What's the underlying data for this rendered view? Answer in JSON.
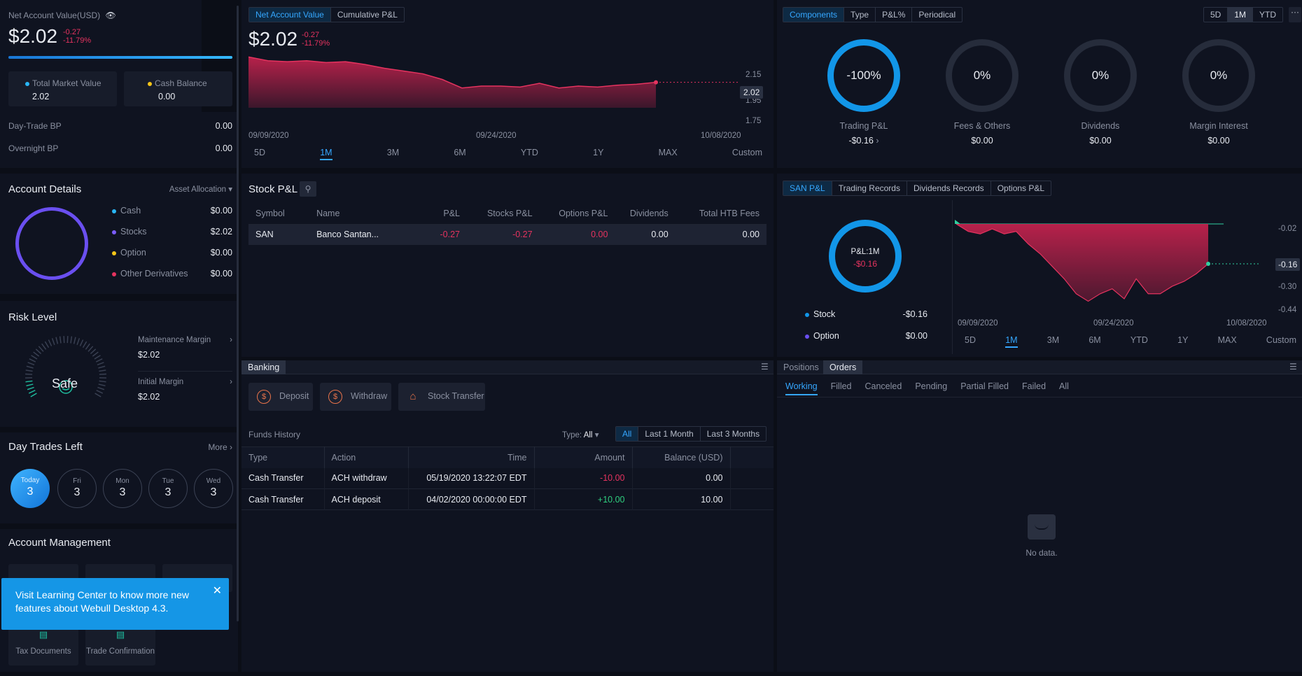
{
  "account": {
    "nav_label": "Net Account Value(USD)",
    "nav_value": "$2.02",
    "nav_change": "-0.27",
    "nav_change_pct": "-11.79%",
    "total_market_value_label": "Total Market Value",
    "total_market_value": "2.02",
    "cash_balance_label": "Cash Balance",
    "cash_balance": "0.00",
    "day_trade_bp_label": "Day-Trade BP",
    "day_trade_bp": "0.00",
    "overnight_bp_label": "Overnight BP",
    "overnight_bp": "0.00"
  },
  "account_details": {
    "title": "Account Details",
    "dropdown": "Asset Allocation",
    "items": [
      {
        "label": "Cash",
        "value": "$0.00",
        "color": "#29b6f6"
      },
      {
        "label": "Stocks",
        "value": "$2.02",
        "color": "#7b5cff"
      },
      {
        "label": "Option",
        "value": "$0.00",
        "color": "#f5c518"
      },
      {
        "label": "Other Derivatives",
        "value": "$0.00",
        "color": "#e5335f"
      }
    ]
  },
  "risk": {
    "title": "Risk Level",
    "status": "Safe",
    "maint_label": "Maintenance Margin",
    "maint_value": "$2.02",
    "init_label": "Initial Margin",
    "init_value": "$2.02"
  },
  "day_trades": {
    "title": "Day Trades Left",
    "more": "More",
    "days": [
      {
        "day": "Today",
        "count": "3"
      },
      {
        "day": "Fri",
        "count": "3"
      },
      {
        "day": "Mon",
        "count": "3"
      },
      {
        "day": "Tue",
        "count": "3"
      },
      {
        "day": "Wed",
        "count": "3"
      }
    ]
  },
  "account_mgmt": {
    "title": "Account Management",
    "tax_docs": "Tax Documents",
    "trade_conf": "Trade Confirmation"
  },
  "toast": {
    "text": "Visit Learning Center to know more new features about Webull Desktop 4.3."
  },
  "nav_chart": {
    "tabs": [
      "Net Account Value",
      "Cumulative P&L"
    ],
    "value": "$2.02",
    "change": "-0.27",
    "change_pct": "-11.79%",
    "last_label": "2.02",
    "y_ticks": [
      "2.15",
      "1.95",
      "1.75"
    ],
    "x_labels": [
      "09/09/2020",
      "09/24/2020",
      "10/08/2020"
    ],
    "ranges": [
      "5D",
      "1M",
      "3M",
      "6M",
      "YTD",
      "1Y",
      "MAX",
      "Custom"
    ],
    "active_range": "1M"
  },
  "chart_data": [
    {
      "type": "area",
      "title": "Net Account Value",
      "x": [
        "09/09/2020",
        "09/10/2020",
        "09/11/2020",
        "09/14/2020",
        "09/15/2020",
        "09/16/2020",
        "09/17/2020",
        "09/18/2020",
        "09/21/2020",
        "09/22/2020",
        "09/23/2020",
        "09/24/2020",
        "09/25/2020",
        "09/28/2020",
        "09/29/2020",
        "09/30/2020",
        "10/01/2020",
        "10/02/2020",
        "10/05/2020",
        "10/06/2020",
        "10/07/2020",
        "10/08/2020"
      ],
      "values": [
        2.29,
        2.25,
        2.24,
        2.25,
        2.23,
        2.24,
        2.21,
        2.17,
        2.14,
        2.11,
        2.05,
        1.96,
        1.98,
        1.98,
        1.97,
        2.01,
        1.96,
        1.98,
        1.97,
        1.99,
        2.0,
        2.02
      ],
      "ylim": [
        1.75,
        2.3
      ],
      "y_ticks": [
        2.15,
        1.95,
        1.75
      ]
    },
    {
      "type": "area",
      "title": "SAN P&L",
      "x": [
        "09/09/2020",
        "09/10/2020",
        "09/11/2020",
        "09/14/2020",
        "09/15/2020",
        "09/16/2020",
        "09/17/2020",
        "09/18/2020",
        "09/21/2020",
        "09/22/2020",
        "09/23/2020",
        "09/24/2020",
        "09/25/2020",
        "09/28/2020",
        "09/29/2020",
        "09/30/2020",
        "10/01/2020",
        "10/02/2020",
        "10/05/2020",
        "10/06/2020",
        "10/07/2020",
        "10/08/2020"
      ],
      "values": [
        0.0,
        -0.03,
        -0.04,
        -0.02,
        -0.04,
        -0.03,
        -0.08,
        -0.12,
        -0.17,
        -0.22,
        -0.28,
        -0.31,
        -0.28,
        -0.26,
        -0.3,
        -0.22,
        -0.28,
        -0.28,
        -0.25,
        -0.23,
        -0.2,
        -0.16
      ],
      "ylim": [
        -0.44,
        0.0
      ],
      "y_ticks": [
        -0.02,
        -0.16,
        -0.3,
        -0.44
      ]
    }
  ],
  "components": {
    "tabs": [
      "Components",
      "Type",
      "P&L%",
      "Periodical"
    ],
    "ranges": [
      "5D",
      "1M",
      "YTD"
    ],
    "active_range": "1M",
    "items": [
      {
        "pct": "-100%",
        "label": "Trading P&L",
        "value": "-$0.16"
      },
      {
        "pct": "0%",
        "label": "Fees & Others",
        "value": "$0.00"
      },
      {
        "pct": "0%",
        "label": "Dividends",
        "value": "$0.00"
      },
      {
        "pct": "0%",
        "label": "Margin Interest",
        "value": "$0.00"
      }
    ]
  },
  "stock_pl": {
    "title": "Stock P&L",
    "headers": [
      "Symbol",
      "Name",
      "P&L",
      "Stocks P&L",
      "Options P&L",
      "Dividends",
      "Total HTB Fees"
    ],
    "rows": [
      {
        "symbol": "SAN",
        "name": "Banco Santan...",
        "pl": "-0.27",
        "stocks_pl": "-0.27",
        "options_pl": "0.00",
        "dividends": "0.00",
        "htb": "0.00"
      }
    ]
  },
  "san_pl": {
    "tabs": [
      "SAN P&L",
      "Trading Records",
      "Dividends Records",
      "Options P&L"
    ],
    "ring_label": "P&L:1M",
    "ring_value": "-$0.16",
    "stock_label": "Stock",
    "stock_value": "-$0.16",
    "option_label": "Option",
    "option_value": "$0.00",
    "y_ticks": [
      "-0.02",
      "-0.16",
      "-0.30",
      "-0.44"
    ],
    "last_label": "-0.16",
    "x_labels": [
      "09/09/2020",
      "09/24/2020",
      "10/08/2020"
    ],
    "ranges": [
      "5D",
      "1M",
      "3M",
      "6M",
      "YTD",
      "1Y",
      "MAX",
      "Custom"
    ],
    "active_range": "1M"
  },
  "banking": {
    "tab": "Banking",
    "deposit": "Deposit",
    "withdraw": "Withdraw",
    "stock_transfer": "Stock Transfer",
    "funds_history": "Funds History",
    "type_label": "Type:",
    "type_value": "All",
    "filters": [
      "All",
      "Last 1 Month",
      "Last 3 Months"
    ],
    "headers": [
      "Type",
      "Action",
      "Time",
      "Amount",
      "Balance (USD)"
    ],
    "rows": [
      {
        "type": "Cash Transfer",
        "action": "ACH withdraw",
        "time": "05/19/2020 13:22:07 EDT",
        "amount": "-10.00",
        "balance": "0.00"
      },
      {
        "type": "Cash Transfer",
        "action": "ACH deposit",
        "time": "04/02/2020 00:00:00 EDT",
        "amount": "+10.00",
        "balance": "10.00"
      }
    ]
  },
  "orders": {
    "tabs": [
      "Positions",
      "Orders"
    ],
    "sub_tabs": [
      "Working",
      "Filled",
      "Canceled",
      "Pending",
      "Partial Filled",
      "Failed",
      "All"
    ],
    "empty": "No data."
  }
}
